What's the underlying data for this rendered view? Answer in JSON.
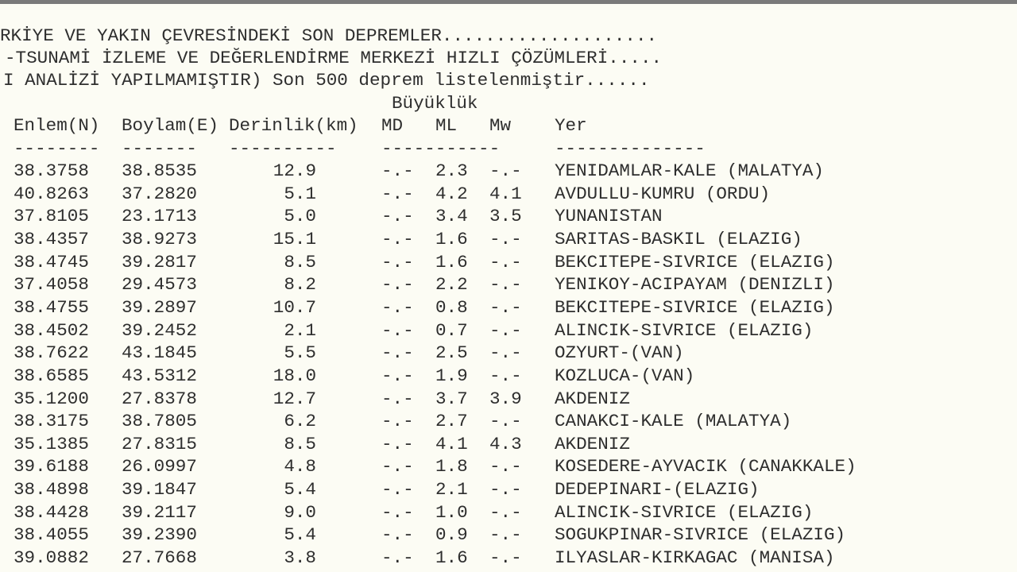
{
  "header_lines": [
    "RKİYE VE YAKIN ÇEVRESİNDEKİ SON DEPREMLER....................",
    "-TSUNAMİ İZLEME VE DEĞERLENDİRME MERKEZİ HIZLI ÇÖZÜMLERİ.....",
    "I ANALİZİ YAPILMAMIŞTIR) Son 500 deprem listelenmiştir......"
  ],
  "magnitude_group_label": "Büyüklük",
  "columns": {
    "lat": "Enlem(N)",
    "lon": "Boylam(E)",
    "depth": "Derinlik(km)",
    "md": "MD",
    "ml": "ML",
    "mw": "Mw",
    "place": "Yer"
  },
  "separators": {
    "lat": "--------",
    "lon": "-------",
    "depth": "----------",
    "mag": "-----------",
    "place": "--------------"
  },
  "rows": [
    {
      "lat": "38.3758",
      "lon": "38.8535",
      "depth": "12.9",
      "md": "-.-",
      "ml": "2.3",
      "mw": "-.-",
      "place": "YENIDAMLAR-KALE (MALATYA)"
    },
    {
      "lat": "40.8263",
      "lon": "37.2820",
      "depth": "5.1",
      "md": "-.-",
      "ml": "4.2",
      "mw": "4.1",
      "place": "AVDULLU-KUMRU (ORDU)"
    },
    {
      "lat": "37.8105",
      "lon": "23.1713",
      "depth": "5.0",
      "md": "-.-",
      "ml": "3.4",
      "mw": "3.5",
      "place": "YUNANISTAN"
    },
    {
      "lat": "38.4357",
      "lon": "38.9273",
      "depth": "15.1",
      "md": "-.-",
      "ml": "1.6",
      "mw": "-.-",
      "place": "SARITAS-BASKIL (ELAZIG)"
    },
    {
      "lat": "38.4745",
      "lon": "39.2817",
      "depth": "8.5",
      "md": "-.-",
      "ml": "1.6",
      "mw": "-.-",
      "place": "BEKCITEPE-SIVRICE (ELAZIG)"
    },
    {
      "lat": "37.4058",
      "lon": "29.4573",
      "depth": "8.2",
      "md": "-.-",
      "ml": "2.2",
      "mw": "-.-",
      "place": "YENIKOY-ACIPAYAM (DENIZLI)"
    },
    {
      "lat": "38.4755",
      "lon": "39.2897",
      "depth": "10.7",
      "md": "-.-",
      "ml": "0.8",
      "mw": "-.-",
      "place": "BEKCITEPE-SIVRICE (ELAZIG)"
    },
    {
      "lat": "38.4502",
      "lon": "39.2452",
      "depth": "2.1",
      "md": "-.-",
      "ml": "0.7",
      "mw": "-.-",
      "place": "ALINCIK-SIVRICE (ELAZIG)"
    },
    {
      "lat": "38.7622",
      "lon": "43.1845",
      "depth": "5.5",
      "md": "-.-",
      "ml": "2.5",
      "mw": "-.-",
      "place": "OZYURT-(VAN)"
    },
    {
      "lat": "38.6585",
      "lon": "43.5312",
      "depth": "18.0",
      "md": "-.-",
      "ml": "1.9",
      "mw": "-.-",
      "place": "KOZLUCA-(VAN)"
    },
    {
      "lat": "35.1200",
      "lon": "27.8378",
      "depth": "12.7",
      "md": "-.-",
      "ml": "3.7",
      "mw": "3.9",
      "place": "AKDENIZ"
    },
    {
      "lat": "38.3175",
      "lon": "38.7805",
      "depth": "6.2",
      "md": "-.-",
      "ml": "2.7",
      "mw": "-.-",
      "place": "CANAKCI-KALE (MALATYA)"
    },
    {
      "lat": "35.1385",
      "lon": "27.8315",
      "depth": "8.5",
      "md": "-.-",
      "ml": "4.1",
      "mw": "4.3",
      "place": "AKDENIZ"
    },
    {
      "lat": "39.6188",
      "lon": "26.0997",
      "depth": "4.8",
      "md": "-.-",
      "ml": "1.8",
      "mw": "-.-",
      "place": "KOSEDERE-AYVACIK (CANAKKALE)"
    },
    {
      "lat": "38.4898",
      "lon": "39.1847",
      "depth": "5.4",
      "md": "-.-",
      "ml": "2.1",
      "mw": "-.-",
      "place": "DEDEPINARI-(ELAZIG)"
    },
    {
      "lat": "38.4428",
      "lon": "39.2117",
      "depth": "9.0",
      "md": "-.-",
      "ml": "1.0",
      "mw": "-.-",
      "place": "ALINCIK-SIVRICE (ELAZIG)"
    },
    {
      "lat": "38.4055",
      "lon": "39.2390",
      "depth": "5.4",
      "md": "-.-",
      "ml": "0.9",
      "mw": "-.-",
      "place": "SOGUKPINAR-SIVRICE (ELAZIG)"
    },
    {
      "lat": "39.0882",
      "lon": "27.7668",
      "depth": "3.8",
      "md": "-.-",
      "ml": "1.6",
      "mw": "-.-",
      "place": "ILYASLAR-KIRKAGAC (MANISA)"
    }
  ]
}
